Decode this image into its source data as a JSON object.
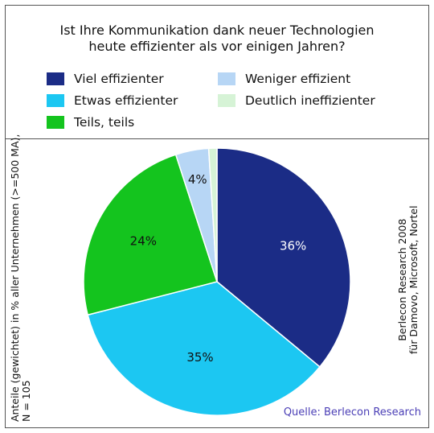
{
  "chart_data": {
    "type": "pie",
    "title_lines": [
      "Ist Ihre Kommunikation dank neuer Technologien",
      "heute effizienter als vor einigen Jahren?"
    ],
    "slices": [
      {
        "label": "Viel effizienter",
        "value": 36,
        "value_label": "36%",
        "color": "#1b2c86"
      },
      {
        "label": "Etwas effizienter",
        "value": 35,
        "value_label": "35%",
        "color": "#1cc7f2"
      },
      {
        "label": "Teils, teils",
        "value": 24,
        "value_label": "24%",
        "color": "#14c41e"
      },
      {
        "label": "Weniger effizient",
        "value": 4,
        "value_label": "4%",
        "color": "#b7d6f5"
      },
      {
        "label": "Deutlich ineffizienter",
        "value": 1,
        "value_label": "",
        "color": "#d6f3d6"
      }
    ],
    "start_angle_deg": 0,
    "direction": "clockwise",
    "legend_position": "top"
  },
  "left_note_lines": [
    "Anteile (gewichtet) in % aller Unternehmen (>=500 MA),",
    "N = 105"
  ],
  "right_note_lines": [
    "Berlecon Research 2008",
    "für Damovo, Microsoft, Nortel"
  ],
  "source": "Quelle: Berlecon Research"
}
